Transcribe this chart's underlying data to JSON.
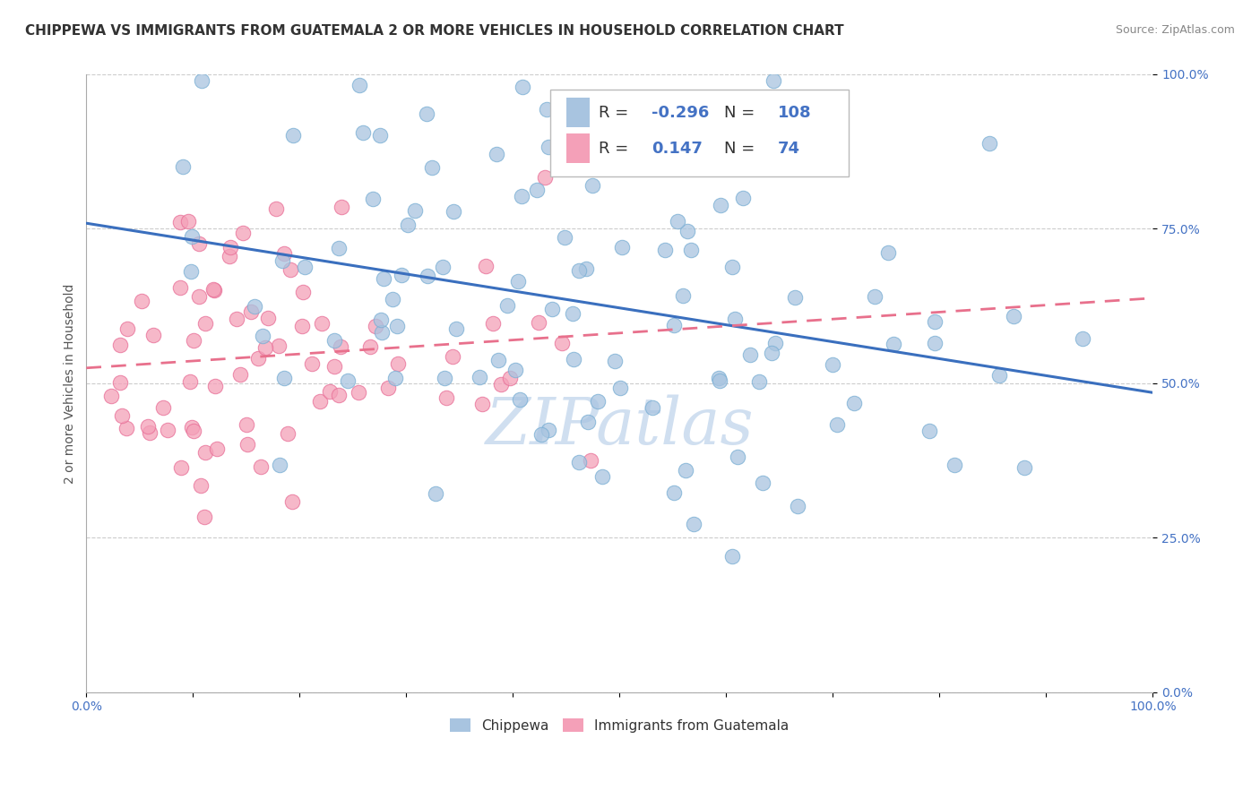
{
  "title": "CHIPPEWA VS IMMIGRANTS FROM GUATEMALA 2 OR MORE VEHICLES IN HOUSEHOLD CORRELATION CHART",
  "source": "Source: ZipAtlas.com",
  "ylabel": "2 or more Vehicles in Household",
  "xlim": [
    0.0,
    1.0
  ],
  "ylim": [
    0.0,
    1.0
  ],
  "ytick_labels": [
    "0.0%",
    "25.0%",
    "50.0%",
    "75.0%",
    "100.0%"
  ],
  "chippewa_color": "#a8c4e0",
  "chippewa_edge_color": "#7aafd4",
  "guatemala_color": "#f4a0b8",
  "guatemala_edge_color": "#e87098",
  "chippewa_line_color": "#3a6fbe",
  "guatemala_line_color": "#e8708c",
  "legend_R1": "-0.296",
  "legend_N1": "108",
  "legend_R2": "0.147",
  "legend_N2": "74",
  "watermark": "ZIPatlas",
  "watermark_color": "#d0dff0",
  "background_color": "#ffffff",
  "title_fontsize": 11,
  "axis_label_fontsize": 10,
  "tick_fontsize": 10,
  "legend_fontsize": 13,
  "watermark_fontsize": 52,
  "legend_text_color": "#333333",
  "legend_value_color": "#4472c4",
  "ytick_color": "#4472c4",
  "xtick_color": "#4472c4",
  "source_color": "#888888",
  "ylabel_color": "#555555"
}
